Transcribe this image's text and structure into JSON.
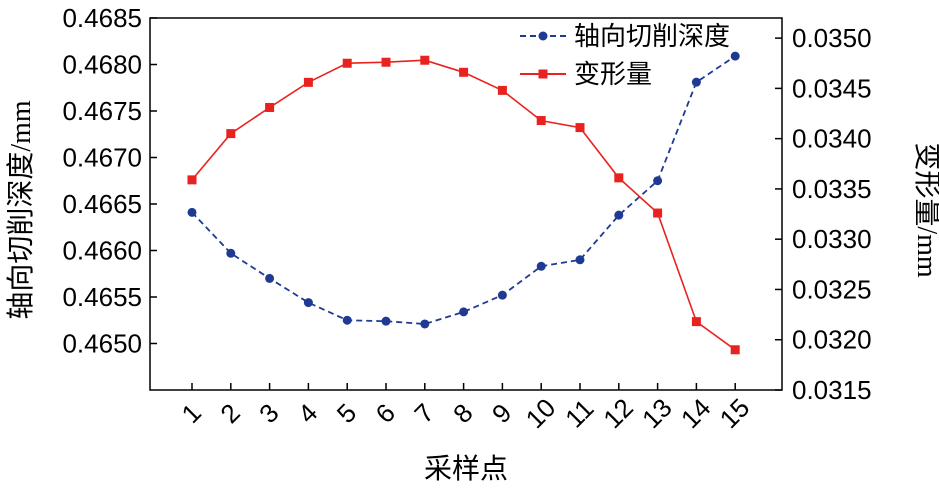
{
  "chart_data": {
    "type": "line",
    "xlabel": "采样点",
    "categories": [
      "1",
      "2",
      "3",
      "4",
      "5",
      "6",
      "7",
      "8",
      "9",
      "10",
      "11",
      "12",
      "13",
      "14",
      "15"
    ],
    "y_left": {
      "label": "轴向切削深度/mm",
      "range": [
        0.4645,
        0.4685
      ],
      "ticks": [
        "0.4650",
        "0.4655",
        "0.4660",
        "0.4665",
        "0.4670",
        "0.4675",
        "0.4680",
        "0.4685"
      ]
    },
    "y_right": {
      "label": "变形量/mm",
      "range": [
        0.0315,
        0.0352
      ],
      "ticks": [
        "0.0315",
        "0.0320",
        "0.0325",
        "0.0330",
        "0.0335",
        "0.0340",
        "0.0345",
        "0.0350"
      ]
    },
    "series": [
      {
        "name": "轴向切削深度",
        "axis": "left",
        "color": "#1f3a93",
        "style": "dashed",
        "marker": "circle",
        "values": [
          0.46641,
          0.46597,
          0.4657,
          0.46544,
          0.46525,
          0.46524,
          0.46521,
          0.46534,
          0.46552,
          0.46583,
          0.4659,
          0.46638,
          0.46675,
          0.46781,
          0.46809
        ]
      },
      {
        "name": "变形量",
        "axis": "right",
        "color": "#e8231f",
        "style": "solid",
        "marker": "square",
        "values": [
          0.03359,
          0.03405,
          0.03431,
          0.03456,
          0.03475,
          0.03476,
          0.03478,
          0.03466,
          0.03448,
          0.03418,
          0.03411,
          0.03361,
          0.03326,
          0.03218,
          0.0319
        ]
      }
    ],
    "legend_position": "top-right",
    "grid": false
  }
}
